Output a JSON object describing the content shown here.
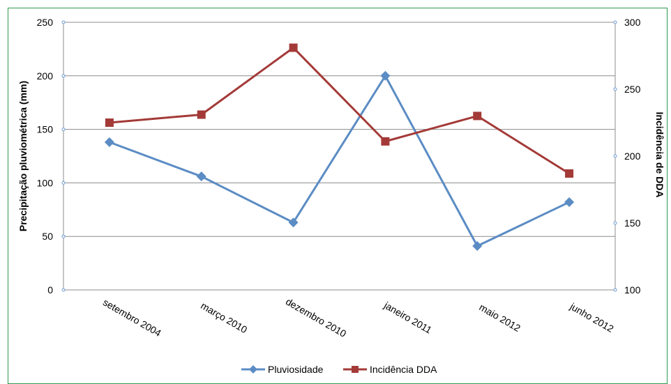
{
  "chart_data": {
    "type": "line",
    "categories": [
      "setembro 2004",
      "março 2010",
      "dezembro 2010",
      "janeiro 2011",
      "maio 2012",
      "junho 2012"
    ],
    "series": [
      {
        "name": "Pluviosidade",
        "axis": "left",
        "color": "#5b8cc4",
        "marker": "diamond",
        "values": [
          138,
          106,
          63,
          200,
          41,
          82
        ]
      },
      {
        "name": "Incidência DDA",
        "axis": "right",
        "color": "#a33a37",
        "marker": "square",
        "values": [
          225,
          231,
          281,
          211,
          230,
          187
        ]
      }
    ],
    "ylabel": "Precipitação pluviométrica (mm)",
    "y2label": "Incidência de DDA",
    "ylim": [
      0,
      250
    ],
    "yticks": [
      "0",
      "50",
      "100",
      "150",
      "200",
      "250"
    ],
    "y2lim": [
      100,
      300
    ],
    "y2ticks": [
      "100",
      "150",
      "200",
      "250",
      "300"
    ],
    "grid": true,
    "legend_position": "bottom"
  }
}
